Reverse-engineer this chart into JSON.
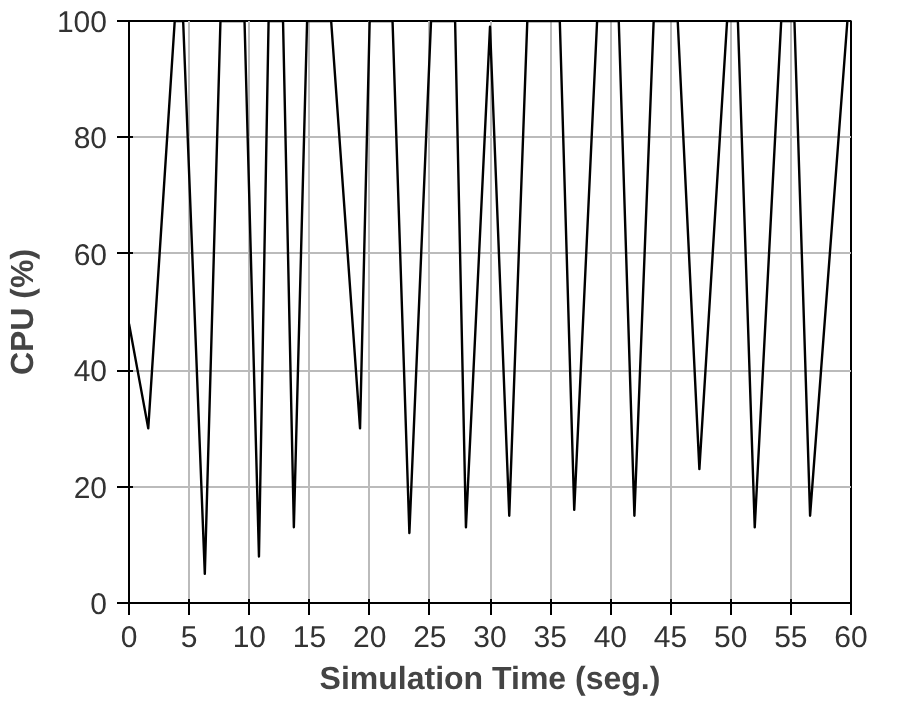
{
  "chart_data": {
    "type": "line",
    "xlabel": "Simulation Time (seg.)",
    "ylabel": "CPU (%)",
    "x": [
      0,
      1.6,
      3.8,
      4.5,
      6.3,
      7.6,
      9.6,
      10.8,
      11.6,
      12.8,
      13.7,
      14.8,
      16.8,
      19.2,
      20,
      21.9,
      23.3,
      25.1,
      27.1,
      28,
      30,
      31.6,
      33.1,
      35.8,
      37,
      38.9,
      40.7,
      42,
      43.6,
      45.6,
      47.4,
      49.7,
      50.6,
      52,
      54.2,
      55.3,
      56.6,
      59.7
    ],
    "series": [
      {
        "color": "#000000",
        "values": [
          48,
          30,
          100,
          100,
          5,
          100,
          100,
          8,
          100,
          100,
          13,
          100,
          100,
          30,
          100,
          100,
          12,
          100,
          100,
          13,
          99,
          15,
          100,
          100,
          16,
          100,
          100,
          15,
          100,
          100,
          23,
          100,
          100,
          13,
          100,
          100,
          15,
          100
        ]
      }
    ],
    "xlim": [
      0,
      60
    ],
    "ylim": [
      0,
      100
    ],
    "xticks": [
      0,
      5,
      10,
      15,
      20,
      25,
      30,
      35,
      40,
      45,
      50,
      55,
      60
    ],
    "yticks": [
      0,
      20,
      40,
      60,
      80,
      100
    ],
    "grid": true,
    "marker": "none",
    "line_style": "solid"
  }
}
